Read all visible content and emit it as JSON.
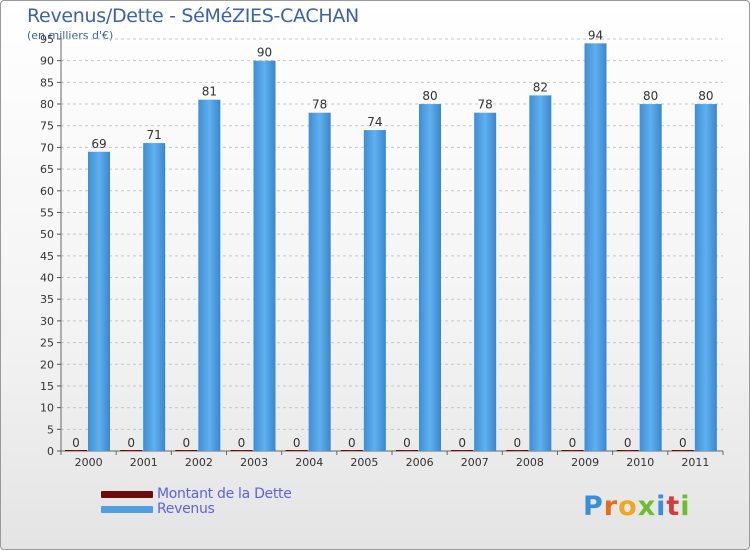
{
  "chart_data": {
    "type": "bar",
    "title": "Revenus/Dette - SéMéZIES-CACHAN",
    "subtitle": "(en milliers d'€)",
    "categories": [
      "2000",
      "2001",
      "2002",
      "2003",
      "2004",
      "2005",
      "2006",
      "2007",
      "2008",
      "2009",
      "2010",
      "2011"
    ],
    "series": [
      {
        "name": "Montant de la Dette",
        "color": "#6e0c0c",
        "values": [
          0,
          0,
          0,
          0,
          0,
          0,
          0,
          0,
          0,
          0,
          0,
          0
        ]
      },
      {
        "name": "Revenus",
        "color": "#4f9fe0",
        "values": [
          69,
          71,
          81,
          90,
          78,
          74,
          80,
          78,
          82,
          94,
          80,
          80
        ]
      }
    ],
    "ylim": [
      0,
      95
    ],
    "yticks": [
      0,
      5,
      10,
      15,
      20,
      25,
      30,
      35,
      40,
      45,
      50,
      55,
      60,
      65,
      70,
      75,
      80,
      85,
      90,
      95
    ],
    "grid": true,
    "legend": "bottom-left"
  },
  "logo": {
    "text": "Proxiti",
    "colors": [
      "#3a8fd8",
      "#e86a1a",
      "#f2a51e",
      "#6cbf2a",
      "#3a8fd8",
      "#d83a3a",
      "#6cbf2a"
    ]
  }
}
